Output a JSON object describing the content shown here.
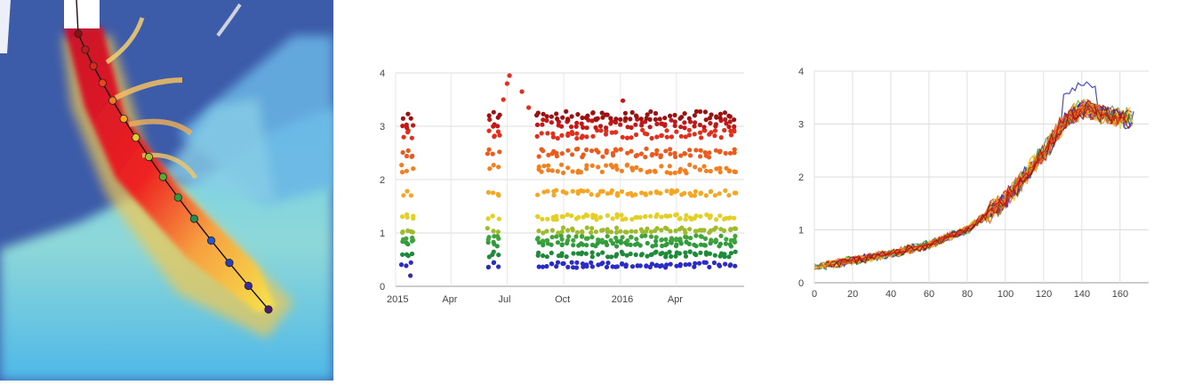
{
  "map": {
    "profile_points": [
      {
        "color": "#8b1010"
      },
      {
        "color": "#b81c1c"
      },
      {
        "color": "#d42a1e"
      },
      {
        "color": "#e8461f"
      },
      {
        "color": "#f07a22"
      },
      {
        "color": "#f7a728"
      },
      {
        "color": "#e9c92a"
      },
      {
        "color": "#a9c230"
      },
      {
        "color": "#5ca838"
      },
      {
        "color": "#2f9b3c"
      },
      {
        "color": "#1f8f55"
      },
      {
        "color": "#2756c8"
      },
      {
        "color": "#2840b8"
      },
      {
        "color": "#3b2aa0"
      },
      {
        "color": "#4b1c6e"
      }
    ],
    "colors": {
      "background": "#3c5ba9",
      "ice_fast": "#e81e1e",
      "ice_mid": "#f7e64a",
      "ice_slow": "#5bc7e8",
      "nodata": "#ffffff"
    }
  },
  "chart_data": [
    {
      "type": "scatter",
      "ylim": [
        0,
        4
      ],
      "yticks": [
        "0",
        "1",
        "2",
        "3",
        "4"
      ],
      "xticks": [
        "2015",
        "Apr",
        "Jul",
        "Oct",
        "2016",
        "Apr"
      ],
      "xlim": [
        "2015-01-01",
        "2016-07-20"
      ],
      "band_levels": [
        0.4,
        0.6,
        0.8,
        0.9,
        1.05,
        1.3,
        1.75,
        2.2,
        2.5,
        2.85,
        3.05,
        3.2
      ],
      "band_colors": [
        "#2b2bc8",
        "#1e8a3a",
        "#2f9b3c",
        "#3fa53a",
        "#9dbb2a",
        "#e3cf25",
        "#f6a623",
        "#f57e1f",
        "#ee5a1c",
        "#e32e1c",
        "#c21818",
        "#9c1010"
      ],
      "acquisition_dates": [
        "2015-01-12",
        "2015-01-20",
        "2015-01-28",
        "2015-06-01",
        "2015-06-09",
        "2015-06-17",
        "2015-08-20",
        "2015-08-28",
        "2015-09-05",
        "2015-09-13",
        "2015-09-21",
        "2015-09-29",
        "2015-10-07",
        "2015-10-15",
        "2015-10-23",
        "2015-10-31",
        "2015-11-08",
        "2015-11-16",
        "2015-11-24",
        "2015-12-02",
        "2015-12-10",
        "2015-12-18",
        "2015-12-26",
        "2016-01-03",
        "2016-01-11",
        "2016-01-19",
        "2016-01-27",
        "2016-02-04",
        "2016-02-12",
        "2016-02-20",
        "2016-02-28",
        "2016-03-07",
        "2016-03-15",
        "2016-03-23",
        "2016-03-31",
        "2016-04-08",
        "2016-04-16",
        "2016-04-24",
        "2016-05-02",
        "2016-05-10",
        "2016-05-18",
        "2016-05-26",
        "2016-06-03",
        "2016-06-11",
        "2016-06-19",
        "2016-06-27",
        "2016-07-05"
      ],
      "outliers": [
        {
          "date": "2015-06-25",
          "value": 3.5,
          "color": "#e32e1c"
        },
        {
          "date": "2015-07-01",
          "value": 3.8,
          "color": "#e32e1c"
        },
        {
          "date": "2015-07-05",
          "value": 3.95,
          "color": "#e32e1c"
        },
        {
          "date": "2015-07-25",
          "value": 3.65,
          "color": "#e32e1c"
        },
        {
          "date": "2015-08-05",
          "value": 3.35,
          "color": "#e32e1c"
        },
        {
          "date": "2016-01-05",
          "value": 3.48,
          "color": "#c21818"
        },
        {
          "date": "2015-01-25",
          "value": 0.2,
          "color": "#3b2aa0"
        }
      ]
    },
    {
      "type": "line",
      "xlim": [
        0,
        175
      ],
      "ylim": [
        0,
        4
      ],
      "xticks": [
        "0",
        "20",
        "40",
        "60",
        "80",
        "100",
        "120",
        "140",
        "160"
      ],
      "yticks": [
        "0",
        "1",
        "2",
        "3",
        "4"
      ],
      "series_colors": [
        "#2b2bc8",
        "#1f8f55",
        "#5ca838",
        "#e3cf25",
        "#f6a623",
        "#f57e1f",
        "#ee5a1c",
        "#e32e1c",
        "#c21818",
        "#9c1010"
      ],
      "profile": [
        [
          0,
          0.3
        ],
        [
          20,
          0.42
        ],
        [
          40,
          0.55
        ],
        [
          60,
          0.72
        ],
        [
          80,
          1.0
        ],
        [
          100,
          1.55
        ],
        [
          120,
          2.45
        ],
        [
          130,
          3.0
        ],
        [
          140,
          3.3
        ],
        [
          150,
          3.2
        ],
        [
          160,
          3.1
        ],
        [
          168,
          3.15
        ]
      ]
    }
  ]
}
